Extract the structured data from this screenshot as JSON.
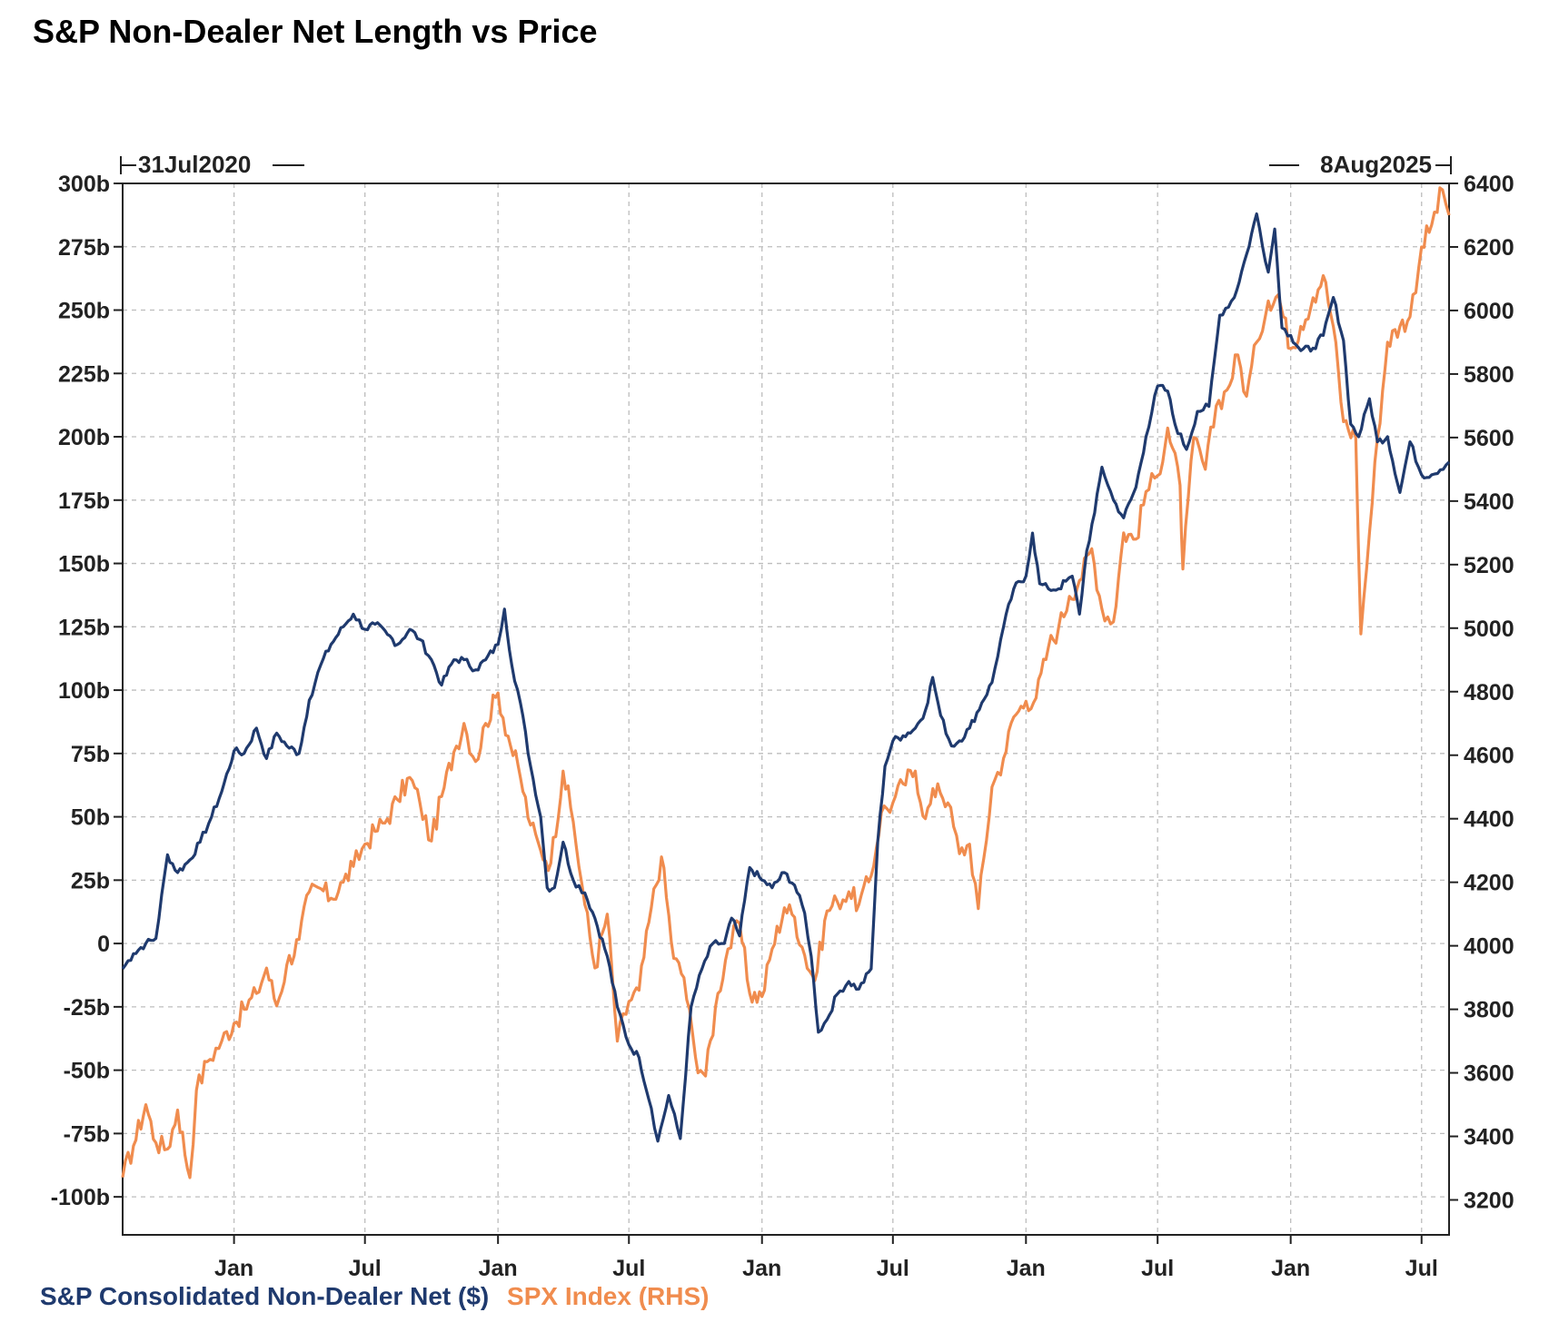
{
  "title": "S&P Non-Dealer Net Length vs Price",
  "start_marker": "31Jul2020",
  "end_marker": "8Aug2025",
  "legend": {
    "series1": "S&P Consolidated Non-Dealer Net ($)",
    "series2": "SPX Index (RHS)"
  },
  "colors": {
    "series1": "#1f3a6e",
    "series2": "#f08c4e"
  },
  "chart_data": {
    "type": "line",
    "title": "S&P Non-Dealer Net Length vs Price",
    "x_start": "2020-07-31",
    "x_end": "2025-08-08",
    "x_tick_labels": [
      {
        "date": "2021-01-01",
        "label": "Jan"
      },
      {
        "date": "2021-07-01",
        "label": "Jul"
      },
      {
        "date": "2022-01-01",
        "label": "Jan"
      },
      {
        "date": "2022-07-01",
        "label": "Jul"
      },
      {
        "date": "2023-01-01",
        "label": "Jan"
      },
      {
        "date": "2023-07-01",
        "label": "Jul"
      },
      {
        "date": "2024-01-01",
        "label": "Jan"
      },
      {
        "date": "2024-07-01",
        "label": "Jul"
      },
      {
        "date": "2025-01-01",
        "label": "Jan"
      },
      {
        "date": "2025-07-01",
        "label": "Jul"
      }
    ],
    "y_left": {
      "range": [
        -115,
        300
      ],
      "ticks": [
        300,
        275,
        250,
        225,
        200,
        175,
        150,
        125,
        100,
        75,
        50,
        25,
        0,
        -25,
        -50,
        -75,
        -100
      ],
      "tick_labels": [
        "300b",
        "275b",
        "250b",
        "225b",
        "200b",
        "175b",
        "150b",
        "125b",
        "100b",
        "75b",
        "50b",
        "25b",
        "0",
        "-25b",
        "-50b",
        "-75b",
        "-100b"
      ]
    },
    "y_right": {
      "range": [
        3090,
        6400
      ],
      "ticks": [
        6400,
        6200,
        6000,
        5800,
        5600,
        5400,
        5200,
        5000,
        4800,
        4600,
        4400,
        4200,
        4000,
        3800,
        3600,
        3400,
        3200
      ],
      "tick_labels": [
        "6400",
        "6200",
        "6000",
        "5800",
        "5600",
        "5400",
        "5200",
        "5000",
        "4800",
        "4600",
        "4400",
        "4200",
        "4000",
        "3800",
        "3600",
        "3400",
        "3200"
      ]
    },
    "grid": true,
    "series": [
      {
        "name": "S&P Consolidated Non-Dealer Net ($)",
        "axis": "left",
        "unit": "b",
        "points": [
          [
            "2020-07-31",
            -10
          ],
          [
            "2020-08-15",
            -4
          ],
          [
            "2020-09-01",
            0
          ],
          [
            "2020-09-15",
            2
          ],
          [
            "2020-10-01",
            35
          ],
          [
            "2020-10-15",
            28
          ],
          [
            "2020-11-01",
            33
          ],
          [
            "2020-11-15",
            40
          ],
          [
            "2020-12-01",
            50
          ],
          [
            "2020-12-15",
            60
          ],
          [
            "2021-01-01",
            76
          ],
          [
            "2021-01-15",
            75
          ],
          [
            "2021-02-01",
            85
          ],
          [
            "2021-02-15",
            73
          ],
          [
            "2021-03-01",
            83
          ],
          [
            "2021-03-15",
            78
          ],
          [
            "2021-04-01",
            75
          ],
          [
            "2021-04-15",
            96
          ],
          [
            "2021-05-01",
            110
          ],
          [
            "2021-05-15",
            118
          ],
          [
            "2021-06-01",
            125
          ],
          [
            "2021-06-15",
            130
          ],
          [
            "2021-07-01",
            124
          ],
          [
            "2021-07-15",
            126
          ],
          [
            "2021-08-01",
            122
          ],
          [
            "2021-08-15",
            118
          ],
          [
            "2021-09-01",
            124
          ],
          [
            "2021-09-15",
            120
          ],
          [
            "2021-10-01",
            112
          ],
          [
            "2021-10-15",
            102
          ],
          [
            "2021-11-01",
            112
          ],
          [
            "2021-11-15",
            112
          ],
          [
            "2021-12-01",
            108
          ],
          [
            "2021-12-15",
            112
          ],
          [
            "2022-01-01",
            118
          ],
          [
            "2022-01-10",
            132
          ],
          [
            "2022-01-20",
            110
          ],
          [
            "2022-02-01",
            95
          ],
          [
            "2022-02-15",
            70
          ],
          [
            "2022-03-01",
            50
          ],
          [
            "2022-03-10",
            22
          ],
          [
            "2022-03-20",
            22
          ],
          [
            "2022-04-01",
            40
          ],
          [
            "2022-04-15",
            25
          ],
          [
            "2022-05-01",
            20
          ],
          [
            "2022-05-15",
            10
          ],
          [
            "2022-06-01",
            -5
          ],
          [
            "2022-06-15",
            -25
          ],
          [
            "2022-07-01",
            -40
          ],
          [
            "2022-07-15",
            -45
          ],
          [
            "2022-08-01",
            -65
          ],
          [
            "2022-08-10",
            -78
          ],
          [
            "2022-08-25",
            -60
          ],
          [
            "2022-09-10",
            -77
          ],
          [
            "2022-09-25",
            -25
          ],
          [
            "2022-10-10",
            -10
          ],
          [
            "2022-10-25",
            0
          ],
          [
            "2022-11-10",
            0
          ],
          [
            "2022-11-20",
            10
          ],
          [
            "2022-12-01",
            3
          ],
          [
            "2022-12-15",
            30
          ],
          [
            "2023-01-01",
            25
          ],
          [
            "2023-01-15",
            22
          ],
          [
            "2023-02-01",
            28
          ],
          [
            "2023-02-15",
            23
          ],
          [
            "2023-03-01",
            12
          ],
          [
            "2023-03-10",
            -5
          ],
          [
            "2023-03-20",
            -35
          ],
          [
            "2023-04-01",
            -30
          ],
          [
            "2023-04-15",
            -20
          ],
          [
            "2023-05-01",
            -15
          ],
          [
            "2023-05-15",
            -18
          ],
          [
            "2023-06-01",
            -10
          ],
          [
            "2023-06-10",
            40
          ],
          [
            "2023-06-20",
            70
          ],
          [
            "2023-07-01",
            80
          ],
          [
            "2023-07-15",
            82
          ],
          [
            "2023-08-01",
            85
          ],
          [
            "2023-08-15",
            92
          ],
          [
            "2023-08-25",
            105
          ],
          [
            "2023-09-05",
            90
          ],
          [
            "2023-09-20",
            78
          ],
          [
            "2023-10-01",
            80
          ],
          [
            "2023-10-15",
            85
          ],
          [
            "2023-11-01",
            95
          ],
          [
            "2023-11-15",
            103
          ],
          [
            "2023-12-01",
            125
          ],
          [
            "2023-12-15",
            140
          ],
          [
            "2024-01-01",
            145
          ],
          [
            "2024-01-10",
            162
          ],
          [
            "2024-01-20",
            142
          ],
          [
            "2024-02-01",
            140
          ],
          [
            "2024-02-15",
            140
          ],
          [
            "2024-02-25",
            143
          ],
          [
            "2024-03-05",
            145
          ],
          [
            "2024-03-15",
            130
          ],
          [
            "2024-03-25",
            155
          ],
          [
            "2024-04-05",
            170
          ],
          [
            "2024-04-15",
            188
          ],
          [
            "2024-05-01",
            175
          ],
          [
            "2024-05-15",
            168
          ],
          [
            "2024-06-01",
            180
          ],
          [
            "2024-06-15",
            200
          ],
          [
            "2024-07-01",
            220
          ],
          [
            "2024-07-15",
            218
          ],
          [
            "2024-07-25",
            205
          ],
          [
            "2024-08-10",
            195
          ],
          [
            "2024-08-25",
            210
          ],
          [
            "2024-09-10",
            212
          ],
          [
            "2024-09-25",
            248
          ],
          [
            "2024-10-15",
            255
          ],
          [
            "2024-11-01",
            272
          ],
          [
            "2024-11-15",
            288
          ],
          [
            "2024-12-01",
            265
          ],
          [
            "2024-12-10",
            282
          ],
          [
            "2024-12-20",
            243
          ],
          [
            "2025-01-01",
            240
          ],
          [
            "2025-01-15",
            234
          ],
          [
            "2025-02-01",
            235
          ],
          [
            "2025-02-15",
            240
          ],
          [
            "2025-03-01",
            255
          ],
          [
            "2025-03-15",
            238
          ],
          [
            "2025-03-25",
            205
          ],
          [
            "2025-04-05",
            200
          ],
          [
            "2025-04-20",
            215
          ],
          [
            "2025-05-01",
            198
          ],
          [
            "2025-05-15",
            200
          ],
          [
            "2025-06-01",
            178
          ],
          [
            "2025-06-15",
            198
          ],
          [
            "2025-07-01",
            185
          ],
          [
            "2025-07-15",
            185
          ],
          [
            "2025-08-08",
            190
          ]
        ]
      },
      {
        "name": "SPX Index (RHS)",
        "axis": "right",
        "points": [
          [
            "2020-07-31",
            3271
          ],
          [
            "2020-08-15",
            3370
          ],
          [
            "2020-09-01",
            3500
          ],
          [
            "2020-09-15",
            3380
          ],
          [
            "2020-10-01",
            3360
          ],
          [
            "2020-10-15",
            3483
          ],
          [
            "2020-11-01",
            3270
          ],
          [
            "2020-11-10",
            3545
          ],
          [
            "2020-11-25",
            3635
          ],
          [
            "2020-12-15",
            3700
          ],
          [
            "2021-01-01",
            3756
          ],
          [
            "2021-01-15",
            3800
          ],
          [
            "2021-02-01",
            3850
          ],
          [
            "2021-02-15",
            3930
          ],
          [
            "2021-03-01",
            3811
          ],
          [
            "2021-03-15",
            3940
          ],
          [
            "2021-04-01",
            4020
          ],
          [
            "2021-04-15",
            4170
          ],
          [
            "2021-05-01",
            4180
          ],
          [
            "2021-05-15",
            4150
          ],
          [
            "2021-06-01",
            4200
          ],
          [
            "2021-06-15",
            4250
          ],
          [
            "2021-07-01",
            4320
          ],
          [
            "2021-07-15",
            4360
          ],
          [
            "2021-08-01",
            4400
          ],
          [
            "2021-08-15",
            4460
          ],
          [
            "2021-09-01",
            4530
          ],
          [
            "2021-09-15",
            4450
          ],
          [
            "2021-10-01",
            4330
          ],
          [
            "2021-10-15",
            4470
          ],
          [
            "2021-11-01",
            4610
          ],
          [
            "2021-11-15",
            4700
          ],
          [
            "2021-12-01",
            4580
          ],
          [
            "2021-12-15",
            4700
          ],
          [
            "2022-01-01",
            4796
          ],
          [
            "2022-01-15",
            4660
          ],
          [
            "2022-02-01",
            4530
          ],
          [
            "2022-02-15",
            4380
          ],
          [
            "2022-03-01",
            4300
          ],
          [
            "2022-03-15",
            4260
          ],
          [
            "2022-04-01",
            4550
          ],
          [
            "2022-04-15",
            4390
          ],
          [
            "2022-05-01",
            4130
          ],
          [
            "2022-05-15",
            3930
          ],
          [
            "2022-06-01",
            4100
          ],
          [
            "2022-06-15",
            3700
          ],
          [
            "2022-07-01",
            3825
          ],
          [
            "2022-07-15",
            3860
          ],
          [
            "2022-08-01",
            4120
          ],
          [
            "2022-08-15",
            4280
          ],
          [
            "2022-09-01",
            3960
          ],
          [
            "2022-09-15",
            3900
          ],
          [
            "2022-10-01",
            3650
          ],
          [
            "2022-10-15",
            3590
          ],
          [
            "2022-11-01",
            3850
          ],
          [
            "2022-11-15",
            3990
          ],
          [
            "2022-12-01",
            4070
          ],
          [
            "2022-12-15",
            3850
          ],
          [
            "2023-01-01",
            3840
          ],
          [
            "2023-01-15",
            3990
          ],
          [
            "2023-02-01",
            4120
          ],
          [
            "2023-02-15",
            4090
          ],
          [
            "2023-03-01",
            3970
          ],
          [
            "2023-03-15",
            3890
          ],
          [
            "2023-04-01",
            4110
          ],
          [
            "2023-04-15",
            4140
          ],
          [
            "2023-05-01",
            4170
          ],
          [
            "2023-05-15",
            4130
          ],
          [
            "2023-06-01",
            4220
          ],
          [
            "2023-06-15",
            4420
          ],
          [
            "2023-07-01",
            4450
          ],
          [
            "2023-07-15",
            4510
          ],
          [
            "2023-08-01",
            4550
          ],
          [
            "2023-08-15",
            4400
          ],
          [
            "2023-09-01",
            4510
          ],
          [
            "2023-09-15",
            4450
          ],
          [
            "2023-10-01",
            4290
          ],
          [
            "2023-10-15",
            4320
          ],
          [
            "2023-10-27",
            4117
          ],
          [
            "2023-11-15",
            4500
          ],
          [
            "2023-12-01",
            4590
          ],
          [
            "2023-12-15",
            4720
          ],
          [
            "2024-01-01",
            4770
          ],
          [
            "2024-01-15",
            4780
          ],
          [
            "2024-02-01",
            4940
          ],
          [
            "2024-02-15",
            5000
          ],
          [
            "2024-03-01",
            5100
          ],
          [
            "2024-03-15",
            5150
          ],
          [
            "2024-04-01",
            5250
          ],
          [
            "2024-04-15",
            5060
          ],
          [
            "2024-05-01",
            5020
          ],
          [
            "2024-05-15",
            5300
          ],
          [
            "2024-06-01",
            5280
          ],
          [
            "2024-06-15",
            5430
          ],
          [
            "2024-07-01",
            5480
          ],
          [
            "2024-07-15",
            5630
          ],
          [
            "2024-08-01",
            5450
          ],
          [
            "2024-08-05",
            5186
          ],
          [
            "2024-08-20",
            5600
          ],
          [
            "2024-09-05",
            5500
          ],
          [
            "2024-09-20",
            5700
          ],
          [
            "2024-10-05",
            5750
          ],
          [
            "2024-10-20",
            5860
          ],
          [
            "2024-11-01",
            5730
          ],
          [
            "2024-11-15",
            5900
          ],
          [
            "2024-12-01",
            6030
          ],
          [
            "2024-12-15",
            6050
          ],
          [
            "2025-01-01",
            5880
          ],
          [
            "2025-01-15",
            5950
          ],
          [
            "2025-02-01",
            6040
          ],
          [
            "2025-02-15",
            6110
          ],
          [
            "2025-03-01",
            5950
          ],
          [
            "2025-03-15",
            5650
          ],
          [
            "2025-04-01",
            5600
          ],
          [
            "2025-04-08",
            4982
          ],
          [
            "2025-04-20",
            5300
          ],
          [
            "2025-05-01",
            5600
          ],
          [
            "2025-05-15",
            5900
          ],
          [
            "2025-06-01",
            5950
          ],
          [
            "2025-06-15",
            5980
          ],
          [
            "2025-07-01",
            6200
          ],
          [
            "2025-07-15",
            6270
          ],
          [
            "2025-07-30",
            6380
          ],
          [
            "2025-08-08",
            6300
          ]
        ]
      }
    ]
  }
}
